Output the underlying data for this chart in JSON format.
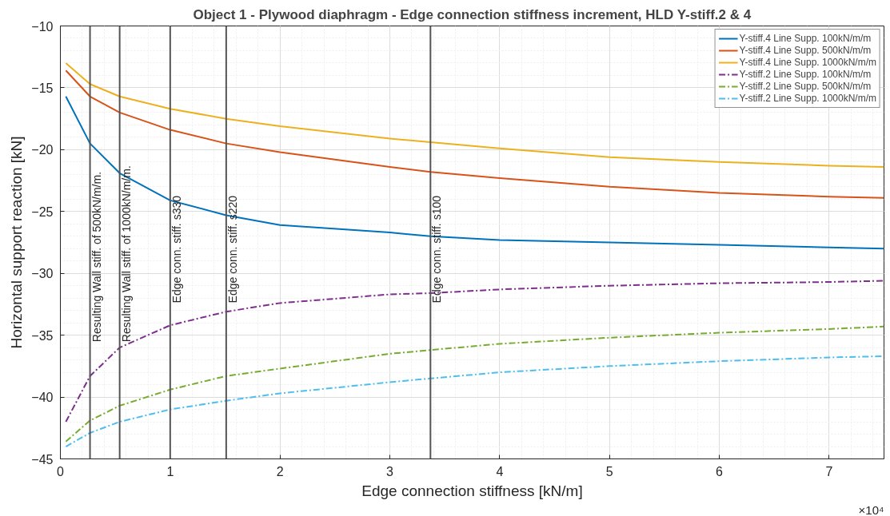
{
  "chart_data": {
    "type": "line",
    "title": "Object 1 - Plywood diaphragm - Edge connection stiffness increment, HLD Y-stiff.2 & 4",
    "xlabel": "Edge connection stiffness [kN/m]",
    "ylabel": "Horizontal support reaction [kN]",
    "x": [
      0.05,
      0.27,
      0.54,
      1.0,
      1.51,
      2.0,
      3.0,
      3.37,
      4.0,
      5.0,
      6.0,
      7.0,
      7.5
    ],
    "series": [
      {
        "name": "Y-stiff.4 Line Supp. 100kN/m/m",
        "color": "#0072bd",
        "line_style": "solid",
        "values": [
          -15.7,
          -19.5,
          -21.9,
          -24.1,
          -25.3,
          -26.1,
          -26.7,
          -27.0,
          -27.3,
          -27.5,
          -27.7,
          -27.9,
          -28.0
        ]
      },
      {
        "name": "Y-stiff.4 Line Supp. 500kN/m/m",
        "color": "#d95319",
        "line_style": "solid",
        "values": [
          -13.6,
          -15.7,
          -17.0,
          -18.4,
          -19.5,
          -20.2,
          -21.4,
          -21.8,
          -22.3,
          -23.0,
          -23.5,
          -23.8,
          -23.9
        ]
      },
      {
        "name": "Y-stiff.4 Line Supp. 1000kN/m/m",
        "color": "#edb120",
        "line_style": "solid",
        "values": [
          -13.0,
          -14.7,
          -15.7,
          -16.7,
          -17.5,
          -18.1,
          -19.1,
          -19.4,
          -19.9,
          -20.6,
          -21.0,
          -21.3,
          -21.4
        ]
      },
      {
        "name": "Y-stiff.2 Line Supp. 100kN/m/m",
        "color": "#7e2f8e",
        "line_style": "dashed",
        "values": [
          -42.0,
          -38.3,
          -36.0,
          -34.2,
          -33.1,
          -32.4,
          -31.7,
          -31.6,
          -31.3,
          -31.0,
          -30.8,
          -30.7,
          -30.6
        ]
      },
      {
        "name": "Y-stiff.2 Line Supp. 500kN/m/m",
        "color": "#77ac30",
        "line_style": "dashed",
        "values": [
          -43.6,
          -41.9,
          -40.7,
          -39.4,
          -38.3,
          -37.7,
          -36.5,
          -36.2,
          -35.7,
          -35.2,
          -34.8,
          -34.5,
          -34.3
        ]
      },
      {
        "name": "Y-stiff.2 Line Supp. 1000kN/m/m",
        "color": "#4dbeee",
        "line_style": "dashed",
        "values": [
          -44.0,
          -42.9,
          -42.0,
          -41.0,
          -40.3,
          -39.7,
          -38.8,
          -38.5,
          -38.0,
          -37.5,
          -37.1,
          -36.8,
          -36.7
        ]
      }
    ],
    "ref_lines": [
      {
        "axis": "x",
        "value": 0.27,
        "label": "Resulting Wall stiff. of 500kN/m/m.",
        "color": "#555555"
      },
      {
        "axis": "x",
        "value": 0.54,
        "label": "Resulting Wall stiff. of 1000kN/m/m.",
        "color": "#555555"
      },
      {
        "axis": "x",
        "value": 1.0,
        "label": "Edge conn. stiff. s330",
        "color": "#555555"
      },
      {
        "axis": "x",
        "value": 1.51,
        "label": "Edge conn. stiff. s220",
        "color": "#555555"
      },
      {
        "axis": "x",
        "value": 3.37,
        "label": "Edge conn. stiff. s100",
        "color": "#555555"
      }
    ],
    "annotations": [
      "×10⁴"
    ],
    "xlim": [
      0,
      7.5
    ],
    "xticks": [
      0,
      1,
      2,
      3,
      4,
      5,
      6,
      7
    ],
    "ylim": [
      -45,
      -10
    ],
    "yticks": [
      -45,
      -40,
      -35,
      -30,
      -25,
      -20,
      -15,
      -10
    ],
    "grid": true,
    "legend": "top right"
  }
}
